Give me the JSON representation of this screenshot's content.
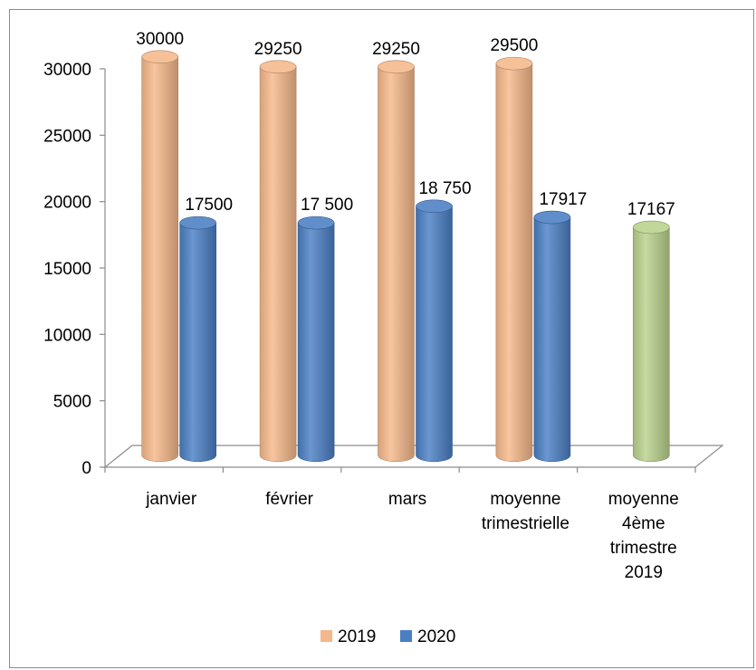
{
  "chart_data": {
    "type": "bar",
    "categories": [
      [
        "janvier"
      ],
      [
        "février"
      ],
      [
        "mars"
      ],
      [
        "moyenne",
        "trimestrielle"
      ],
      [
        "moyenne",
        "4ème",
        "trimestre",
        "2019"
      ]
    ],
    "series": [
      {
        "name": "2019",
        "color": "#f5b88a",
        "values": [
          30000,
          29250,
          29250,
          29500,
          17167
        ],
        "labels": [
          "30000",
          "29250",
          "29250",
          "29500",
          "17167"
        ]
      },
      {
        "name": "2020",
        "color": "#4a7fc4",
        "values": [
          17500,
          17500,
          18750,
          17917,
          null
        ],
        "labels": [
          "17500",
          "17 500",
          "18 750",
          "17917",
          ""
        ]
      }
    ],
    "highlight_color": "#b9d18c",
    "ylim": [
      0,
      30000
    ],
    "yticks": [
      "0",
      "5000",
      "10000",
      "15000",
      "20000",
      "25000",
      "30000"
    ],
    "legend_position": "bottom",
    "grid": false,
    "three_d": true
  }
}
